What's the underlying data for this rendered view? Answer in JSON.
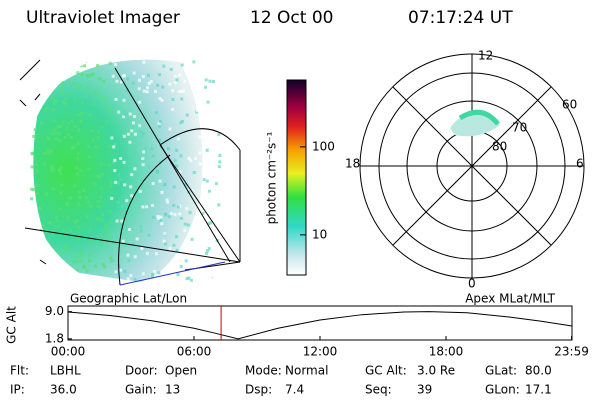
{
  "header": {
    "instrument": "Ultraviolet Imager",
    "date": "12 Oct 00",
    "time": "07:17:24 UT"
  },
  "colorbar": {
    "label": "photon cm⁻²s⁻¹",
    "log_scale": true,
    "clim": [
      3.5,
      575
    ],
    "ticks": [
      10,
      100
    ]
  },
  "polar_plot": {
    "mlt_labels": [
      "12",
      "18",
      "6",
      "0"
    ],
    "mlat_labels": [
      "60",
      "70",
      "80"
    ]
  },
  "altitude_plot": {
    "left_label": "Geographic Lat/Lon",
    "right_label": "Apex MLat/MLT",
    "ylabel": "GC Alt",
    "x": [
      0,
      2,
      4,
      6,
      7,
      8.1,
      10,
      12,
      14,
      16,
      17.2,
      19,
      21,
      22.5,
      24
    ],
    "values": [
      8.9,
      8.0,
      6.6,
      4.6,
      3.3,
      1.8,
      4.6,
      6.8,
      8.2,
      8.9,
      9.0,
      8.7,
      7.6,
      6.5,
      5.2
    ],
    "color": "#000000",
    "marker_x": 7.29,
    "marker_color": "#c00000",
    "xlim": [
      0,
      24
    ],
    "ylim": [
      1.5,
      10.5
    ],
    "xticks": [
      {
        "value": 0,
        "label": "00:00"
      },
      {
        "value": 6,
        "label": "06:00"
      },
      {
        "value": 12,
        "label": "12:00"
      },
      {
        "value": 18,
        "label": "18:00"
      },
      {
        "value": 23.98,
        "label": "23:59"
      }
    ],
    "yticks": [
      {
        "value": 1.8,
        "label": "1.8"
      },
      {
        "value": 9,
        "label": "9.0"
      }
    ]
  },
  "status": {
    "rows": [
      [
        {
          "label": "Flt:",
          "value": "LBHL"
        },
        {
          "label": "Door:",
          "value": "Open"
        },
        {
          "label": "Mode:",
          "value": "Normal"
        },
        {
          "label": "GC Alt:",
          "value": "3.0 Re"
        },
        {
          "label": "GLat:",
          "value": "80.0"
        }
      ],
      [
        {
          "label": "IP:",
          "value": "36.0"
        },
        {
          "label": "Gain:",
          "value": "13"
        },
        {
          "label": "Dsp:",
          "value": "7.4"
        },
        {
          "label": "Seq:",
          "value": "39"
        },
        {
          "label": "GLon:",
          "value": "17.1"
        }
      ]
    ]
  }
}
